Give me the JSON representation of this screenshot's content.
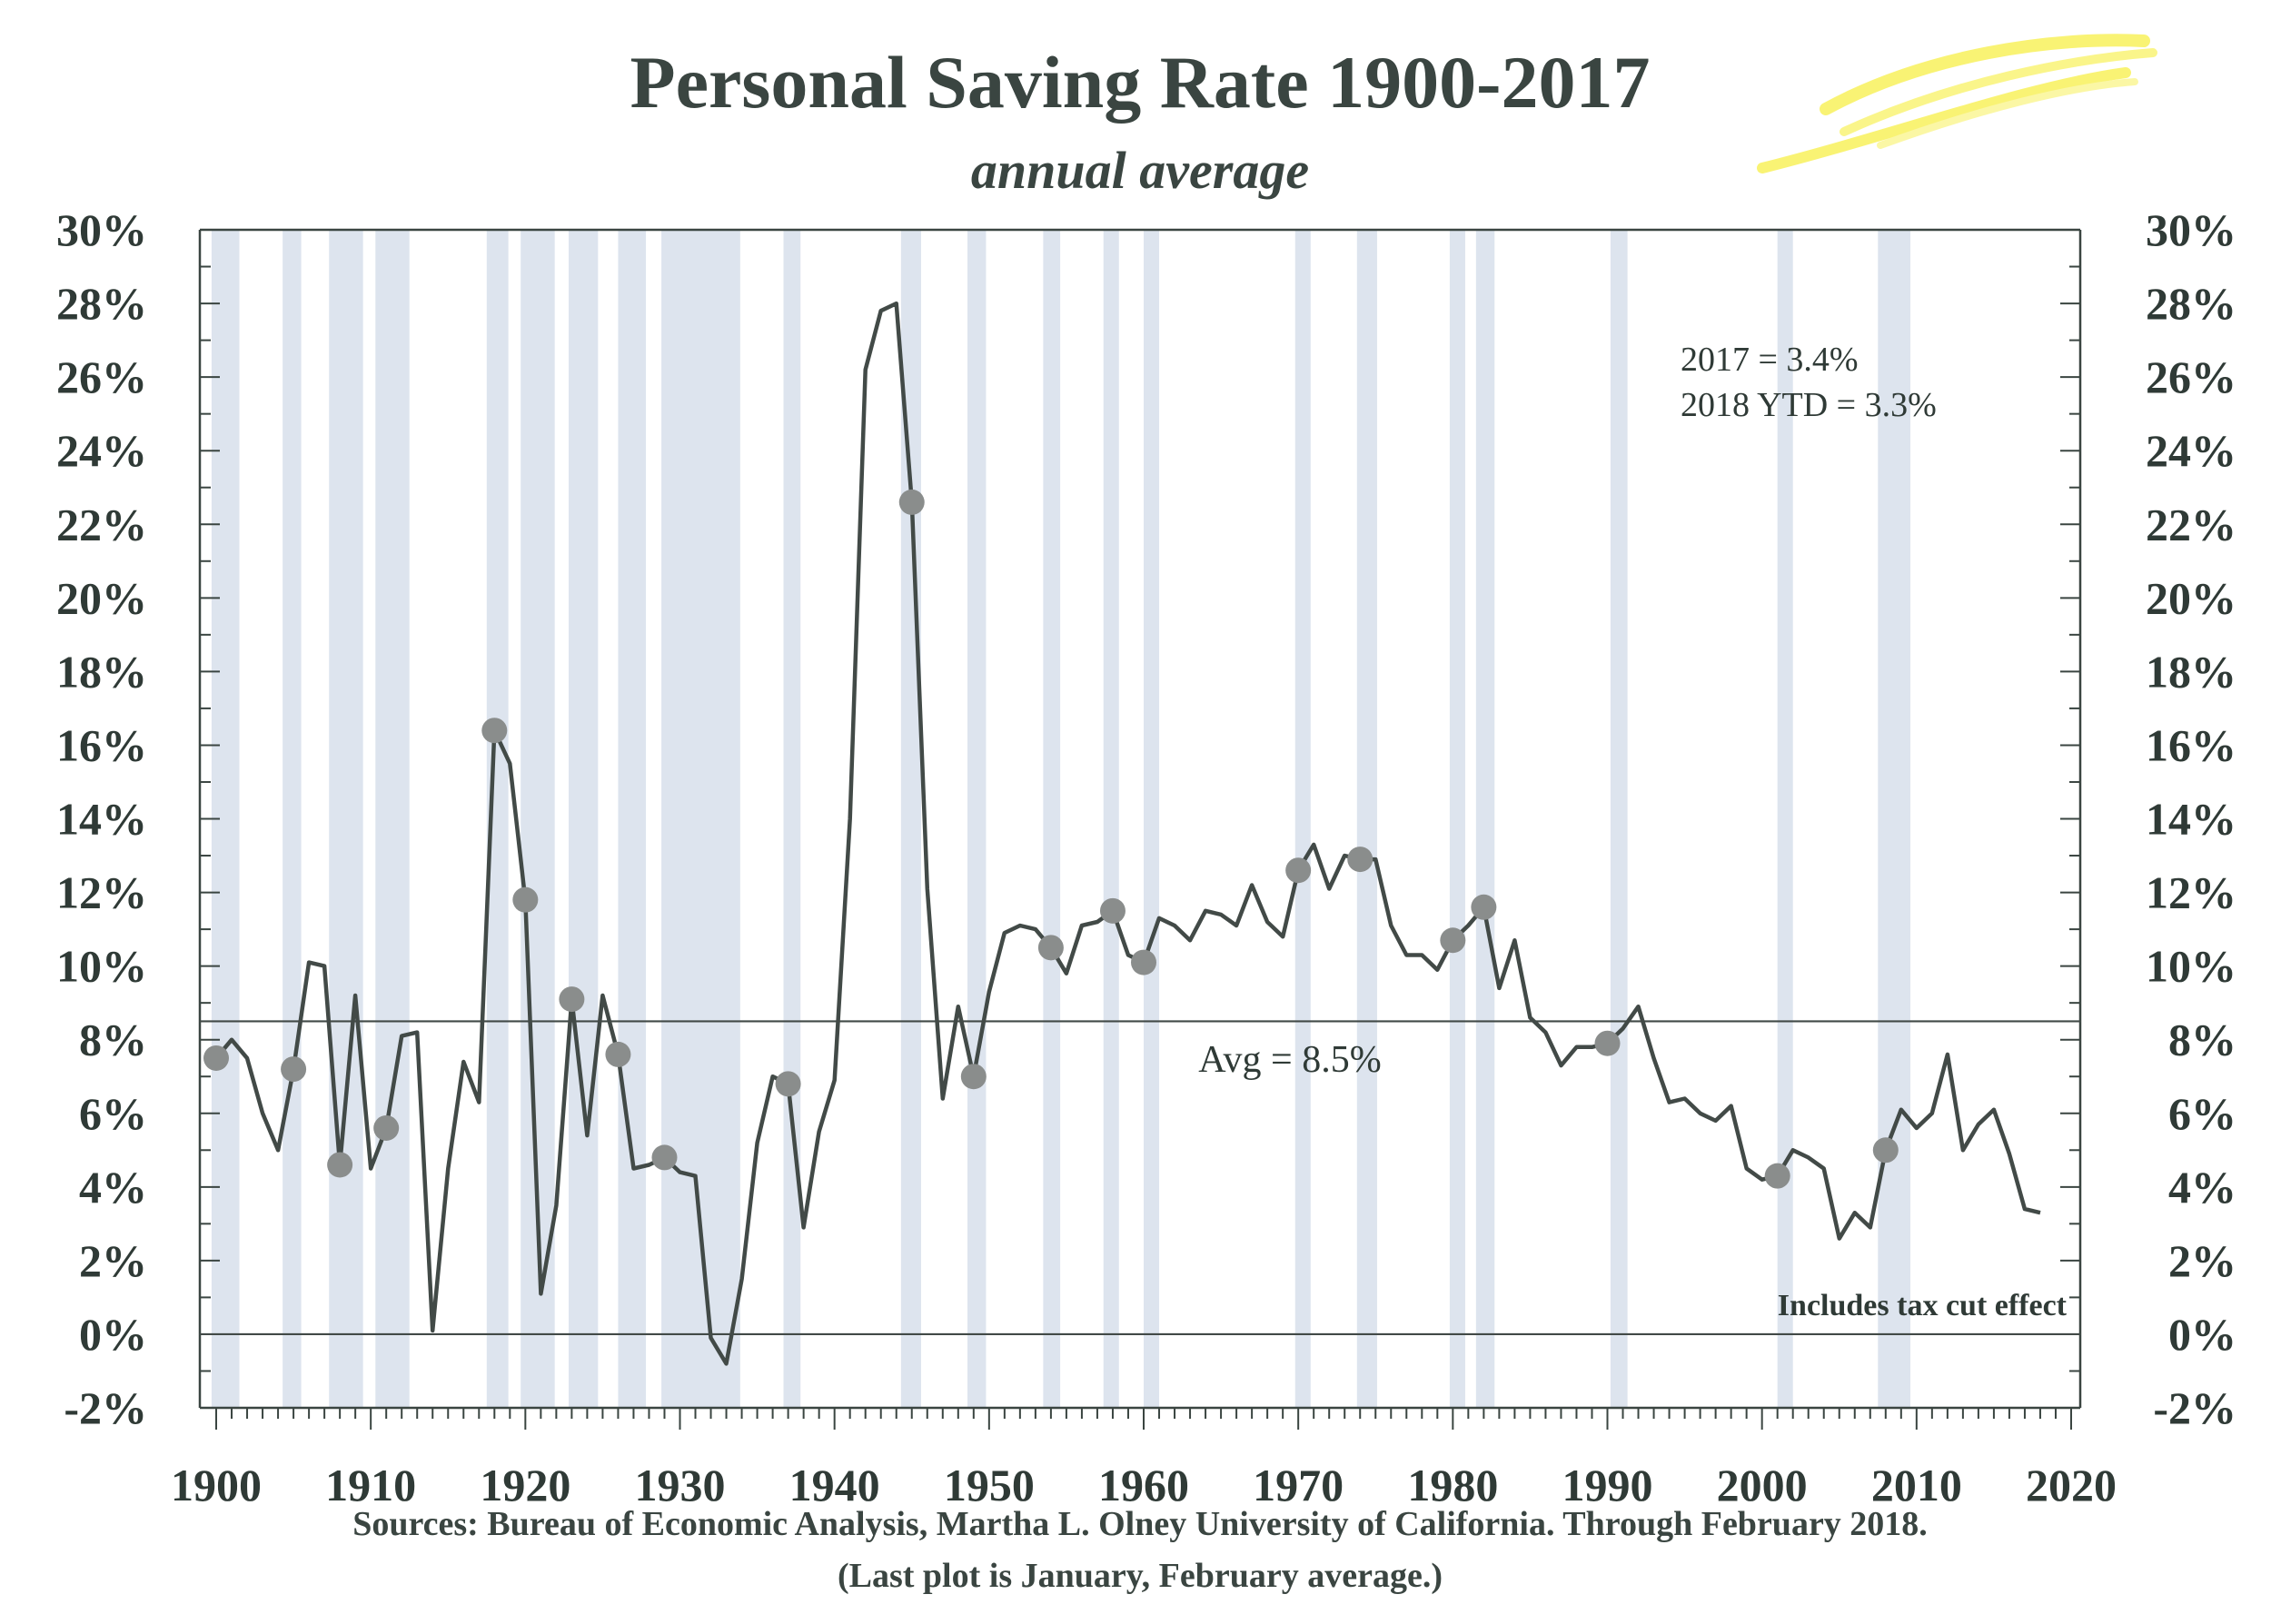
{
  "chart_data": {
    "type": "line",
    "title": "Personal Saving Rate 1900-2017",
    "subtitle": "annual average",
    "xlim": [
      1899,
      2020
    ],
    "ylim": [
      -2,
      30
    ],
    "x_ticks": [
      1900,
      1910,
      1920,
      1930,
      1940,
      1950,
      1960,
      1970,
      1980,
      1990,
      2000,
      2010,
      2020
    ],
    "y_ticks": [
      -2,
      0,
      2,
      4,
      6,
      8,
      10,
      12,
      14,
      16,
      18,
      20,
      22,
      24,
      26,
      28,
      30
    ],
    "y_tick_labels": [
      "-2%",
      "0%",
      "2%",
      "4%",
      "6%",
      "8%",
      "10%",
      "12%",
      "14%",
      "16%",
      "18%",
      "20%",
      "22%",
      "24%",
      "26%",
      "28%",
      "30%"
    ],
    "grid": false,
    "average": {
      "value": 8.5,
      "label": "Avg = 8.5%"
    },
    "recessions": [
      [
        1899.7,
        1901.5
      ],
      [
        1904.3,
        1905.5
      ],
      [
        1907.3,
        1909.5
      ],
      [
        1910.3,
        1912.5
      ],
      [
        1917.5,
        1918.9
      ],
      [
        1919.7,
        1921.9
      ],
      [
        1922.8,
        1924.7
      ],
      [
        1926.0,
        1927.8
      ],
      [
        1928.8,
        1933.9
      ],
      [
        1936.7,
        1937.8
      ],
      [
        1944.3,
        1945.6
      ],
      [
        1948.6,
        1949.8
      ],
      [
        1953.5,
        1954.6
      ],
      [
        1957.4,
        1958.4
      ],
      [
        1960.0,
        1961.0
      ],
      [
        1969.8,
        1970.8
      ],
      [
        1973.8,
        1975.1
      ],
      [
        1979.8,
        1980.8
      ],
      [
        1981.5,
        1982.7
      ],
      [
        1990.2,
        1991.3
      ],
      [
        2001.0,
        2002.0
      ],
      [
        2007.5,
        2009.6
      ]
    ],
    "series": [
      {
        "values_x": [
          1900,
          1901,
          1902,
          1903,
          1904,
          1905,
          1906,
          1907,
          1908,
          1909,
          1910,
          1911,
          1912,
          1913,
          1914,
          1915,
          1916,
          1917,
          1918,
          1919,
          1920,
          1921,
          1922,
          1923,
          1924,
          1925,
          1926,
          1927,
          1928,
          1929,
          1930,
          1931,
          1932,
          1933,
          1934,
          1935,
          1936,
          1937,
          1938,
          1939,
          1940,
          1941,
          1942,
          1943,
          1944,
          1945,
          1946,
          1947,
          1948,
          1949,
          1950,
          1951,
          1952,
          1953,
          1954,
          1955,
          1956,
          1957,
          1958,
          1959,
          1960,
          1961,
          1962,
          1963,
          1964,
          1965,
          1966,
          1967,
          1968,
          1969,
          1970,
          1971,
          1972,
          1973,
          1974,
          1975,
          1976,
          1977,
          1978,
          1979,
          1980,
          1981,
          1982,
          1983,
          1984,
          1985,
          1986,
          1987,
          1988,
          1989,
          1990,
          1991,
          1992,
          1993,
          1994,
          1995,
          1996,
          1997,
          1998,
          1999,
          2000,
          2001,
          2002,
          2003,
          2004,
          2005,
          2006,
          2007,
          2008,
          2009,
          2010,
          2011,
          2012,
          2013,
          2014,
          2015,
          2016,
          2017,
          2018
        ],
        "values_y": [
          7.5,
          8.0,
          7.5,
          6.0,
          5.0,
          7.2,
          10.1,
          10.0,
          4.6,
          9.2,
          4.5,
          5.6,
          8.1,
          8.2,
          0.1,
          4.5,
          7.4,
          6.3,
          16.4,
          15.5,
          11.8,
          1.1,
          3.5,
          9.1,
          5.4,
          9.2,
          7.6,
          4.5,
          4.6,
          4.8,
          4.4,
          4.3,
          -0.1,
          -0.8,
          1.5,
          5.2,
          7.0,
          6.8,
          2.9,
          5.5,
          6.9,
          14.0,
          26.2,
          27.8,
          28.0,
          22.6,
          12.1,
          6.4,
          8.9,
          7.0,
          9.3,
          10.9,
          11.1,
          11.0,
          10.5,
          9.8,
          11.1,
          11.2,
          11.5,
          10.3,
          10.1,
          11.3,
          11.1,
          10.7,
          11.5,
          11.4,
          11.1,
          12.2,
          11.2,
          10.8,
          12.6,
          13.3,
          12.1,
          13.0,
          12.9,
          12.9,
          11.1,
          10.3,
          10.3,
          9.9,
          10.7,
          11.1,
          11.6,
          9.4,
          10.7,
          8.6,
          8.2,
          7.3,
          7.8,
          7.8,
          7.9,
          8.3,
          8.9,
          7.5,
          6.3,
          6.4,
          6.0,
          5.8,
          6.2,
          4.5,
          4.2,
          4.3,
          5.0,
          4.8,
          4.5,
          2.6,
          3.3,
          2.9,
          5.0,
          6.1,
          5.6,
          6.0,
          7.6,
          5.0,
          5.7,
          6.1,
          4.9,
          3.4,
          3.3
        ]
      }
    ],
    "markers": [
      {
        "x": 1900,
        "y": 7.5
      },
      {
        "x": 1905,
        "y": 7.2
      },
      {
        "x": 1908,
        "y": 4.6
      },
      {
        "x": 1911,
        "y": 5.6
      },
      {
        "x": 1918,
        "y": 16.4
      },
      {
        "x": 1920,
        "y": 11.8
      },
      {
        "x": 1923,
        "y": 9.1
      },
      {
        "x": 1926,
        "y": 7.6
      },
      {
        "x": 1929,
        "y": 4.8
      },
      {
        "x": 1937,
        "y": 6.8
      },
      {
        "x": 1945,
        "y": 22.6
      },
      {
        "x": 1949,
        "y": 7.0
      },
      {
        "x": 1954,
        "y": 10.5
      },
      {
        "x": 1958,
        "y": 11.5
      },
      {
        "x": 1960,
        "y": 10.1
      },
      {
        "x": 1970,
        "y": 12.6
      },
      {
        "x": 1974,
        "y": 12.9
      },
      {
        "x": 1980,
        "y": 10.7
      },
      {
        "x": 1982,
        "y": 11.6
      },
      {
        "x": 1990,
        "y": 7.9
      },
      {
        "x": 2001,
        "y": 4.3
      },
      {
        "x": 2008,
        "y": 5.0
      }
    ],
    "annotations": {
      "line1": "2017 = 3.4%",
      "line2": "2018 YTD = 3.3%",
      "tax_note": "Includes tax cut effect"
    },
    "source_line1": "Sources: Bureau of Economic Analysis, Martha L. Olney University of California. Through February 2018.",
    "source_line2": "(Last plot is January, February average.)"
  },
  "colors": {
    "line": "#424a47",
    "marker": "#8a8d8c",
    "recession": "#dde4ee",
    "axis": "#3a4541",
    "highlight": "#f7ef3a"
  }
}
